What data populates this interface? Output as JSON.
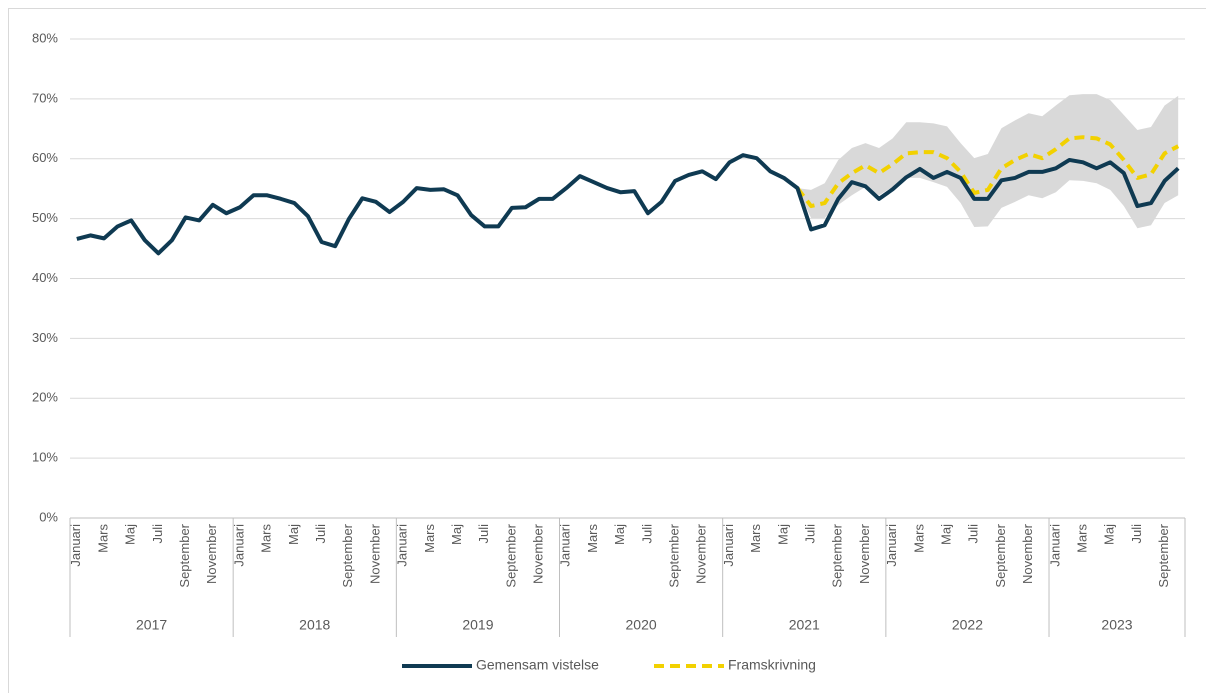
{
  "chart_data": {
    "type": "line",
    "categories": [
      "Januari",
      null,
      "Mars",
      null,
      "Maj",
      null,
      "Juli",
      null,
      "September",
      null,
      "November",
      null,
      "Januari",
      null,
      "Mars",
      null,
      "Maj",
      null,
      "Juli",
      null,
      "September",
      null,
      "November",
      null,
      "Januari",
      null,
      "Mars",
      null,
      "Maj",
      null,
      "Juli",
      null,
      "September",
      null,
      "November",
      null,
      "Januari",
      null,
      "Mars",
      null,
      "Maj",
      null,
      "Juli",
      null,
      "September",
      null,
      "November",
      null,
      "Januari",
      null,
      "Mars",
      null,
      "Maj",
      null,
      "Juli",
      null,
      "September",
      null,
      "November",
      null,
      "Januari",
      null,
      "Mars",
      null,
      "Maj",
      null,
      "Juli",
      null,
      "September",
      null,
      "November",
      null,
      "Januari",
      null,
      "Mars",
      null,
      "Maj",
      null,
      "Juli",
      null,
      "September",
      null
    ],
    "x_groups": [
      "2017",
      "2018",
      "2019",
      "2020",
      "2021",
      "2022",
      "2023"
    ],
    "ylim": [
      0,
      80
    ],
    "yticks": [
      {
        "value": 0,
        "label": "0%"
      },
      {
        "value": 10,
        "label": "10%"
      },
      {
        "value": 20,
        "label": "20%"
      },
      {
        "value": 30,
        "label": "30%"
      },
      {
        "value": 40,
        "label": "40%"
      },
      {
        "value": 50,
        "label": "50%"
      },
      {
        "value": 60,
        "label": "60%"
      },
      {
        "value": 70,
        "label": "70%"
      },
      {
        "value": 80,
        "label": "80%"
      }
    ],
    "grid": true,
    "band": {
      "color": "#d9d9d9",
      "upper": [
        null,
        null,
        null,
        null,
        null,
        null,
        null,
        null,
        null,
        null,
        null,
        null,
        null,
        null,
        null,
        null,
        null,
        null,
        null,
        null,
        null,
        null,
        null,
        null,
        null,
        null,
        null,
        null,
        null,
        null,
        null,
        null,
        null,
        null,
        null,
        null,
        null,
        null,
        null,
        null,
        null,
        null,
        null,
        null,
        null,
        null,
        null,
        null,
        null,
        null,
        null,
        null,
        null,
        55.1,
        54.8,
        55.9,
        59.8,
        61.8,
        62.6,
        61.8,
        63.4,
        66.1,
        66.1,
        65.9,
        65.4,
        62.6,
        60.1,
        60.8,
        65.1,
        66.4,
        67.6,
        67.1,
        68.9,
        70.6,
        70.8,
        70.8,
        69.8,
        67.3,
        64.8,
        65.3,
        68.9,
        70.5
      ],
      "lower": [
        null,
        null,
        null,
        null,
        null,
        null,
        null,
        null,
        null,
        null,
        null,
        null,
        null,
        null,
        null,
        null,
        null,
        null,
        null,
        null,
        null,
        null,
        null,
        null,
        null,
        null,
        null,
        null,
        null,
        null,
        null,
        null,
        null,
        null,
        null,
        null,
        null,
        null,
        null,
        null,
        null,
        null,
        null,
        null,
        null,
        null,
        null,
        null,
        null,
        null,
        null,
        null,
        null,
        55.1,
        50.1,
        50.1,
        52.3,
        53.9,
        55.3,
        53.9,
        55.3,
        56.8,
        56.8,
        56.1,
        55.3,
        52.6,
        48.6,
        48.7,
        51.8,
        52.8,
        53.9,
        53.4,
        54.4,
        56.4,
        56.3,
        55.9,
        54.8,
        52.1,
        48.4,
        48.9,
        52.6,
        53.9
      ]
    },
    "series": [
      {
        "name": "Gemensam vistelse",
        "color": "#0f3a52",
        "style": "solid",
        "values": [
          46.6,
          47.2,
          46.7,
          48.7,
          49.7,
          46.4,
          44.2,
          46.4,
          50.2,
          49.7,
          52.3,
          50.9,
          51.9,
          53.9,
          53.9,
          53.3,
          52.6,
          50.4,
          46.1,
          45.4,
          49.9,
          53.4,
          52.8,
          51.1,
          52.8,
          55.1,
          54.8,
          54.9,
          53.9,
          50.6,
          48.7,
          48.7,
          51.8,
          51.9,
          53.3,
          53.3,
          55.1,
          57.1,
          56.1,
          55.1,
          54.4,
          54.6,
          50.9,
          52.8,
          56.3,
          57.3,
          57.9,
          56.6,
          59.4,
          60.6,
          60.1,
          57.9,
          56.8,
          55.1,
          48.2,
          48.9,
          53.3,
          56.1,
          55.4,
          53.3,
          54.9,
          56.9,
          58.3,
          56.8,
          57.8,
          56.8,
          53.3,
          53.3,
          56.4,
          56.8,
          57.8,
          57.8,
          58.4,
          59.8,
          59.4,
          58.4,
          59.4,
          57.6,
          52.1,
          52.6,
          56.3,
          58.4
        ]
      },
      {
        "name": "Framskrivning",
        "color": "#f2d100",
        "style": "dashed",
        "values": [
          null,
          null,
          null,
          null,
          null,
          null,
          null,
          null,
          null,
          null,
          null,
          null,
          null,
          null,
          null,
          null,
          null,
          null,
          null,
          null,
          null,
          null,
          null,
          null,
          null,
          null,
          null,
          null,
          null,
          null,
          null,
          null,
          null,
          null,
          null,
          null,
          null,
          null,
          null,
          null,
          null,
          null,
          null,
          null,
          null,
          null,
          null,
          null,
          null,
          null,
          null,
          null,
          null,
          55.1,
          52.1,
          52.6,
          55.9,
          57.6,
          58.9,
          57.6,
          59.1,
          60.9,
          61.1,
          61.1,
          60.1,
          57.8,
          54.3,
          54.8,
          58.4,
          59.8,
          60.8,
          60.1,
          61.6,
          63.4,
          63.6,
          63.4,
          62.4,
          59.8,
          56.8,
          57.4,
          60.9,
          62.1
        ]
      }
    ]
  }
}
